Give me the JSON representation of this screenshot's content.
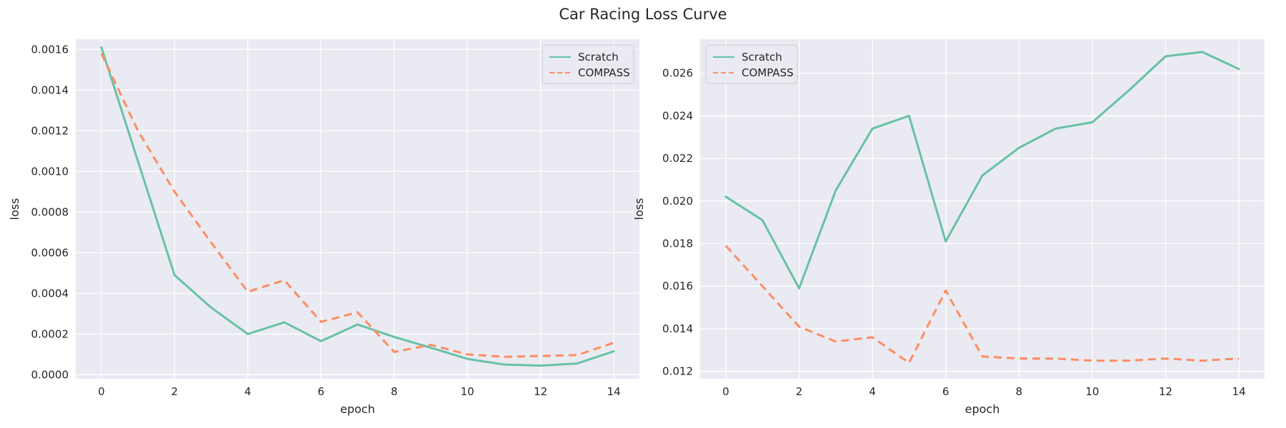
{
  "figure": {
    "title": "Car Racing Loss Curve"
  },
  "colors": {
    "background": "#eaeaf2",
    "grid": "#ffffff",
    "scratch": "#66c2a5",
    "compass": "#fc8d62"
  },
  "chart_data": [
    {
      "type": "line",
      "xlabel": "epoch",
      "ylabel": "loss",
      "xlim": [
        -0.7,
        14.7
      ],
      "ylim": [
        -2e-05,
        0.00165
      ],
      "xticks": [
        "0",
        "2",
        "4",
        "6",
        "8",
        "10",
        "12",
        "14"
      ],
      "yticks": [
        "0.0000",
        "0.0002",
        "0.0004",
        "0.0006",
        "0.0008",
        "0.0010",
        "0.0012",
        "0.0014",
        "0.0016"
      ],
      "grid": true,
      "legend_position": "top-right",
      "x": [
        0,
        1,
        2,
        3,
        4,
        5,
        6,
        7,
        8,
        9,
        10,
        11,
        12,
        13,
        14
      ],
      "series": [
        {
          "name": "Scratch",
          "style": "solid",
          "values": [
            0.00161,
            0.00105,
            0.00049,
            0.00033,
            0.0002,
            0.000258,
            0.000165,
            0.000247,
            0.000186,
            0.000133,
            7.8e-05,
            5e-05,
            4.5e-05,
            5.5e-05,
            0.000115
          ]
        },
        {
          "name": "COMPASS",
          "style": "dashed",
          "values": [
            0.00158,
            0.0012,
            0.0009,
            0.00065,
            0.000408,
            0.000465,
            0.00026,
            0.000307,
            0.000112,
            0.000147,
            0.0001,
            8.8e-05,
            9.2e-05,
            9.7e-05,
            0.000157
          ]
        }
      ]
    },
    {
      "type": "line",
      "xlabel": "epoch",
      "ylabel": "loss",
      "xlim": [
        -0.7,
        14.7
      ],
      "ylim": [
        0.01165,
        0.0276
      ],
      "xticks": [
        "0",
        "2",
        "4",
        "6",
        "8",
        "10",
        "12",
        "14"
      ],
      "yticks": [
        "0.012",
        "0.014",
        "0.016",
        "0.018",
        "0.020",
        "0.022",
        "0.024",
        "0.026"
      ],
      "grid": true,
      "legend_position": "top-left",
      "x": [
        0,
        1,
        2,
        3,
        4,
        5,
        6,
        7,
        8,
        9,
        10,
        11,
        12,
        13,
        14
      ],
      "series": [
        {
          "name": "Scratch",
          "style": "solid",
          "values": [
            0.0202,
            0.0191,
            0.0159,
            0.0205,
            0.0234,
            0.024,
            0.0181,
            0.0212,
            0.0225,
            0.0234,
            0.0237,
            0.0252,
            0.0268,
            0.027,
            0.0262
          ]
        },
        {
          "name": "COMPASS",
          "style": "dashed",
          "values": [
            0.0179,
            0.016,
            0.0141,
            0.0134,
            0.0136,
            0.0124,
            0.0158,
            0.0127,
            0.0126,
            0.0126,
            0.0125,
            0.0125,
            0.0126,
            0.0125,
            0.0126
          ]
        }
      ]
    }
  ]
}
